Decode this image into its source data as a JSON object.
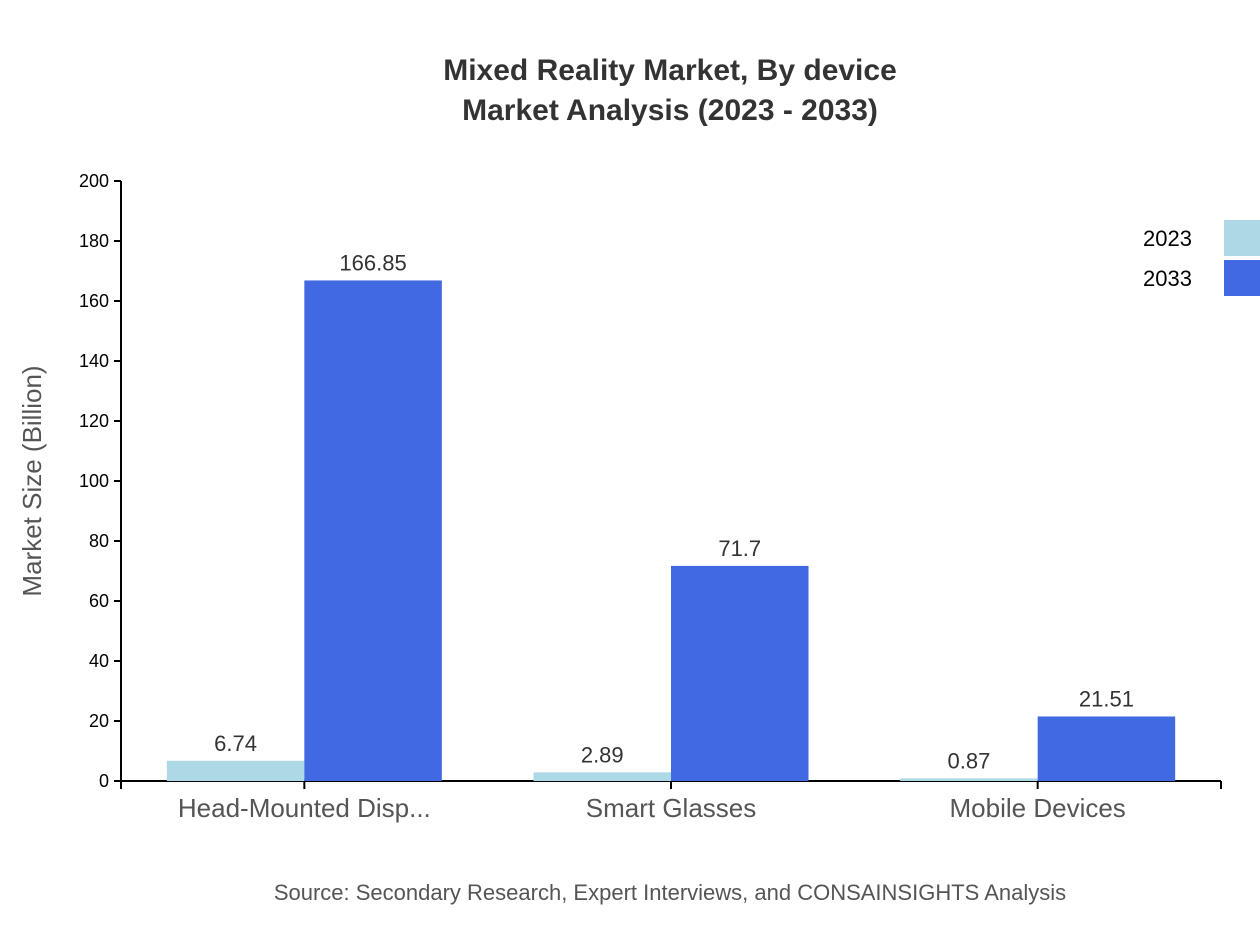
{
  "chart_data": {
    "type": "bar",
    "title": "Mixed Reality Market, By device",
    "subtitle": "Market Analysis (2023 - 2033)",
    "xlabel": "",
    "ylabel": "Market Size (Billion)",
    "ylim": [
      0,
      200
    ],
    "yticks": [
      0,
      20,
      40,
      60,
      80,
      100,
      120,
      140,
      160,
      180,
      200
    ],
    "categories": [
      "Head-Mounted Disp...",
      "Smart Glasses",
      "Mobile Devices"
    ],
    "series": [
      {
        "name": "2023",
        "color": "#add8e6",
        "values": [
          6.74,
          2.89,
          0.87
        ]
      },
      {
        "name": "2033",
        "color": "#4169e1",
        "values": [
          166.85,
          71.7,
          21.51
        ]
      }
    ],
    "legend": "top-right",
    "grid": false,
    "source": "Source: Secondary Research, Expert Interviews, and CONSAINSIGHTS Analysis"
  }
}
